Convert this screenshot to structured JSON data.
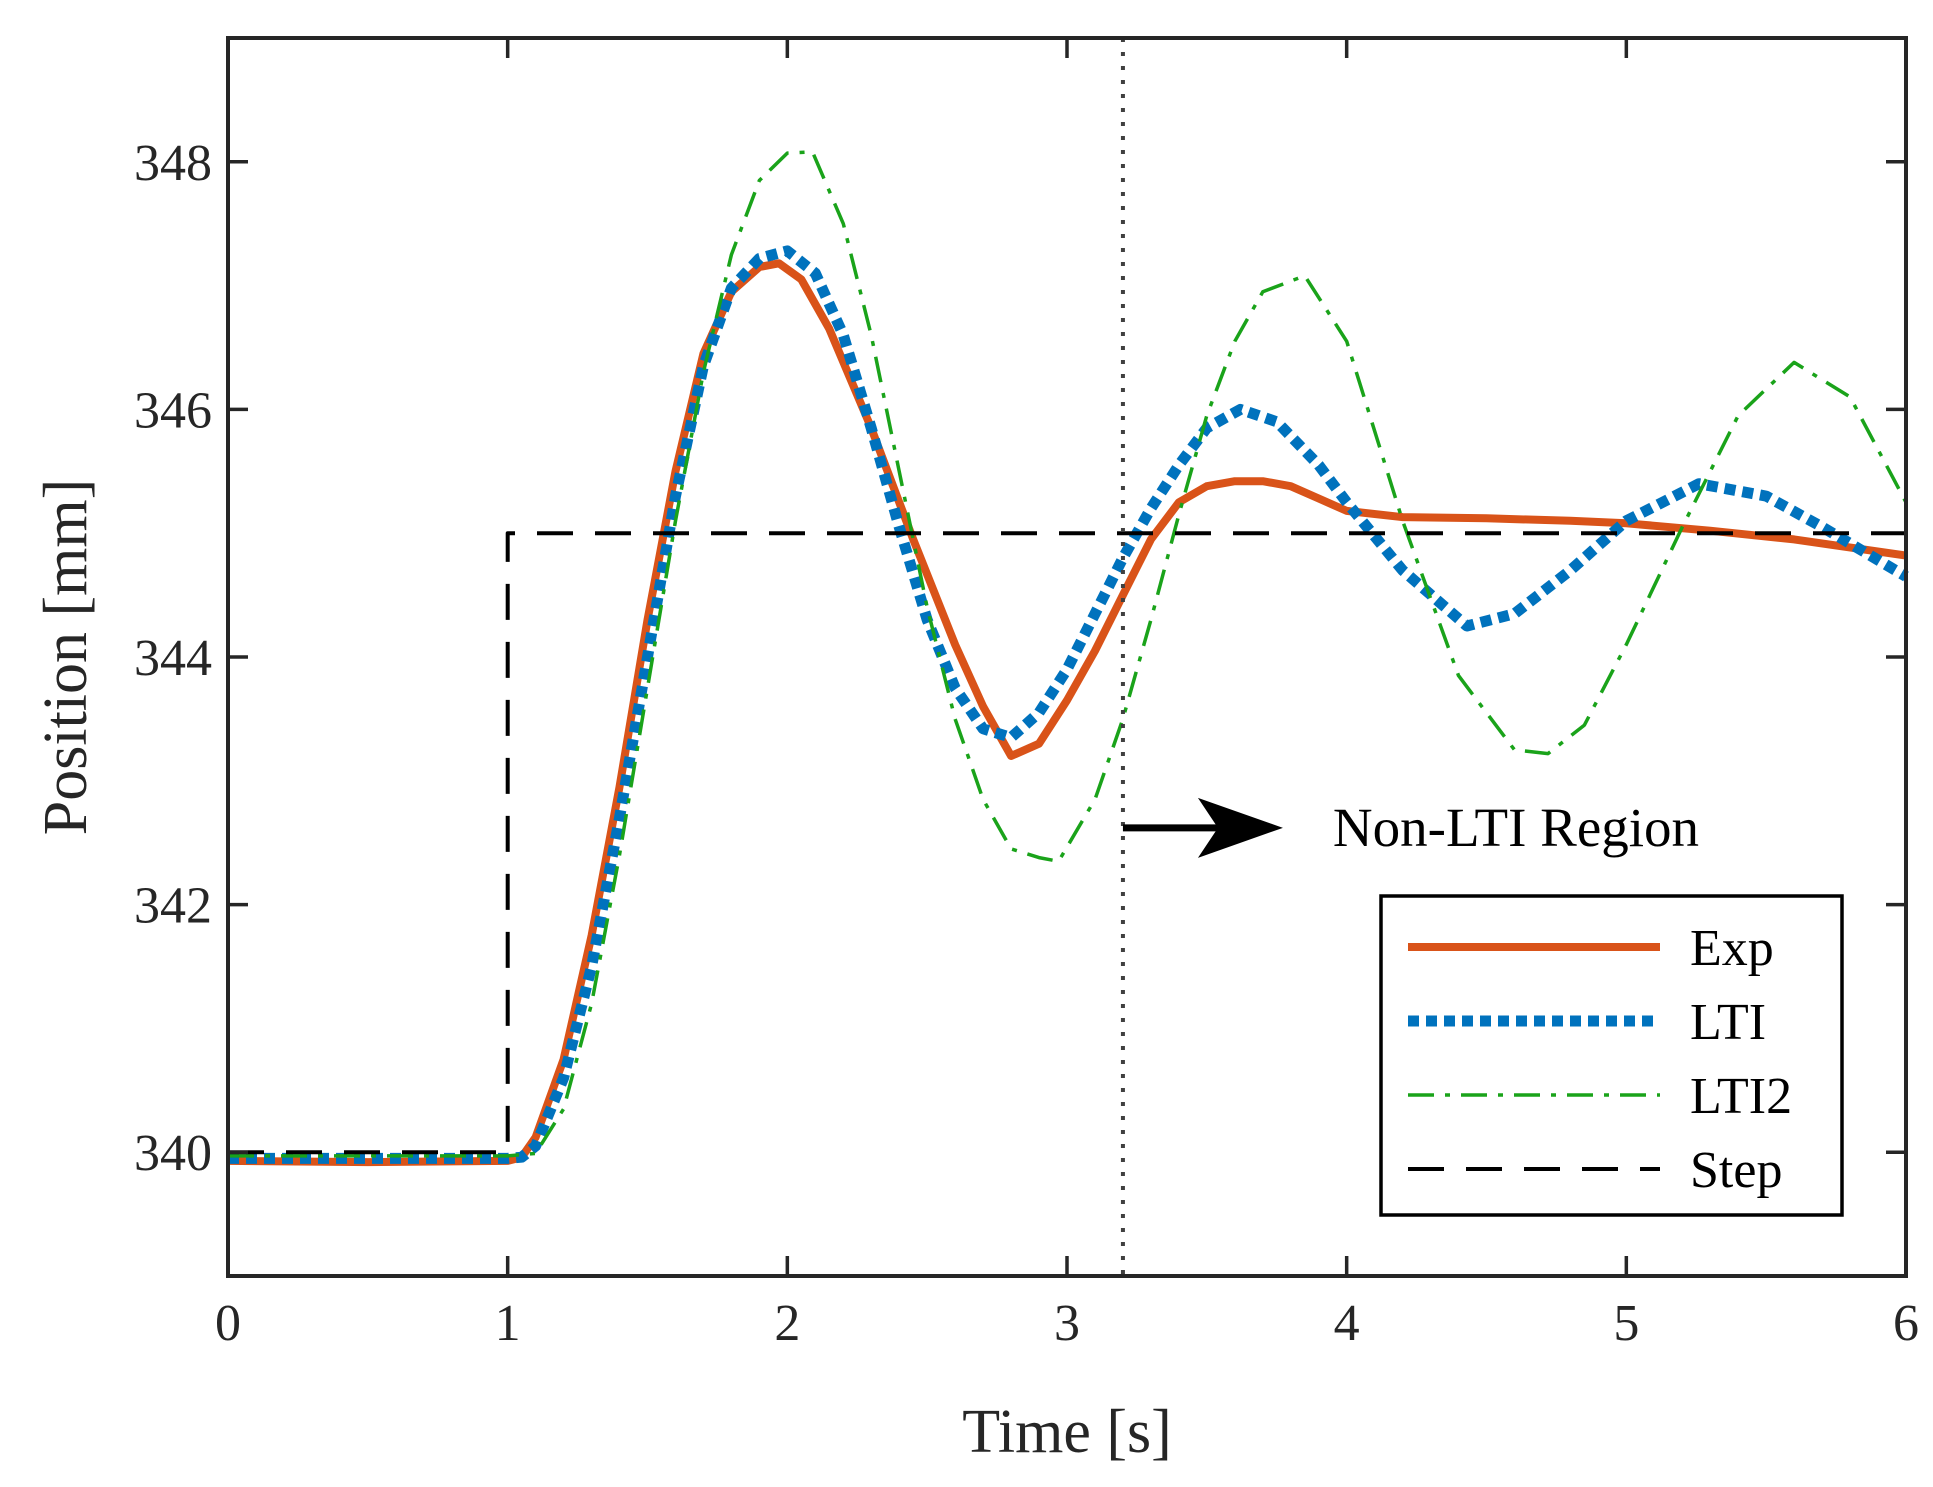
{
  "chart_data": {
    "type": "line",
    "title": "",
    "xlabel": "Time [s]",
    "ylabel": "Position [mm]",
    "xlim": [
      0,
      6
    ],
    "ylim": [
      339,
      349
    ],
    "xticks": [
      0,
      1,
      2,
      3,
      4,
      5,
      6
    ],
    "xtick_labels": [
      "0",
      "1",
      "2",
      "3",
      "4",
      "5",
      "6"
    ],
    "yticks": [
      340,
      342,
      344,
      346,
      348
    ],
    "ytick_labels": [
      "340",
      "342",
      "344",
      "346",
      "348"
    ],
    "grid": false,
    "legend_position": "bottom-right",
    "annotation": {
      "text": "Non-LTI Region",
      "boundary_x": 3.2
    },
    "series": [
      {
        "name": "Exp",
        "color": "#D95319",
        "style": "solid",
        "x": [
          0,
          0.5,
          1.0,
          1.05,
          1.1,
          1.2,
          1.3,
          1.4,
          1.5,
          1.6,
          1.7,
          1.8,
          1.9,
          1.97,
          2.05,
          2.15,
          2.3,
          2.45,
          2.6,
          2.7,
          2.8,
          2.9,
          3.0,
          3.1,
          3.2,
          3.3,
          3.4,
          3.5,
          3.6,
          3.7,
          3.8,
          3.9,
          4.0,
          4.2,
          4.5,
          4.8,
          5.0,
          5.3,
          5.6,
          6.0
        ],
        "y": [
          339.93,
          339.92,
          339.93,
          339.96,
          340.12,
          340.75,
          341.75,
          342.95,
          344.3,
          345.5,
          346.45,
          346.95,
          347.15,
          347.18,
          347.05,
          346.65,
          345.85,
          344.95,
          344.1,
          343.6,
          343.2,
          343.3,
          343.65,
          344.05,
          344.5,
          344.95,
          345.25,
          345.38,
          345.42,
          345.42,
          345.38,
          345.28,
          345.18,
          345.13,
          345.12,
          345.1,
          345.08,
          345.02,
          344.95,
          344.82
        ]
      },
      {
        "name": "LTI",
        "color": "#0072BD",
        "style": "dotted",
        "x": [
          0,
          0.5,
          1.0,
          1.05,
          1.1,
          1.2,
          1.3,
          1.4,
          1.5,
          1.6,
          1.7,
          1.8,
          1.9,
          2.0,
          2.1,
          2.2,
          2.3,
          2.4,
          2.5,
          2.6,
          2.7,
          2.8,
          2.9,
          3.0,
          3.1,
          3.2,
          3.3,
          3.4,
          3.5,
          3.62,
          3.75,
          3.9,
          4.0,
          4.2,
          4.43,
          4.6,
          4.8,
          5.0,
          5.26,
          5.5,
          5.7,
          6.0
        ],
        "y": [
          339.95,
          339.95,
          339.95,
          339.96,
          340.05,
          340.6,
          341.5,
          342.7,
          344.0,
          345.3,
          346.35,
          346.98,
          347.22,
          347.28,
          347.1,
          346.6,
          345.85,
          345.05,
          344.3,
          343.75,
          343.42,
          343.35,
          343.55,
          343.9,
          344.35,
          344.8,
          345.2,
          345.55,
          345.85,
          346.0,
          345.9,
          345.55,
          345.25,
          344.7,
          344.25,
          344.35,
          344.7,
          345.1,
          345.4,
          345.3,
          345.05,
          344.65
        ]
      },
      {
        "name": "LTI2",
        "color": "#1AA31A",
        "style": "dashdot",
        "x": [
          0,
          0.5,
          1.0,
          1.1,
          1.2,
          1.3,
          1.4,
          1.5,
          1.6,
          1.7,
          1.8,
          1.9,
          2.0,
          2.09,
          2.2,
          2.3,
          2.4,
          2.5,
          2.6,
          2.7,
          2.8,
          2.9,
          2.97,
          3.1,
          3.2,
          3.3,
          3.4,
          3.5,
          3.6,
          3.7,
          3.85,
          4.0,
          4.2,
          4.4,
          4.6,
          4.72,
          4.85,
          5.0,
          5.2,
          5.4,
          5.6,
          5.8,
          6.0
        ],
        "y": [
          339.97,
          339.97,
          339.97,
          339.99,
          340.35,
          341.2,
          342.4,
          343.75,
          345.1,
          346.3,
          347.25,
          347.85,
          348.07,
          348.08,
          347.5,
          346.6,
          345.5,
          344.4,
          343.5,
          342.85,
          342.45,
          342.38,
          342.35,
          342.85,
          343.5,
          344.3,
          345.15,
          345.95,
          346.55,
          346.95,
          347.08,
          346.55,
          345.1,
          343.85,
          343.25,
          343.22,
          343.45,
          344.1,
          345.05,
          345.95,
          346.38,
          346.1,
          345.25
        ]
      },
      {
        "name": "Step",
        "color": "#000000",
        "style": "dashed",
        "x": [
          0,
          1.0,
          1.0,
          6.0
        ],
        "y": [
          340.0,
          340.0,
          345.0,
          345.0
        ]
      }
    ]
  }
}
